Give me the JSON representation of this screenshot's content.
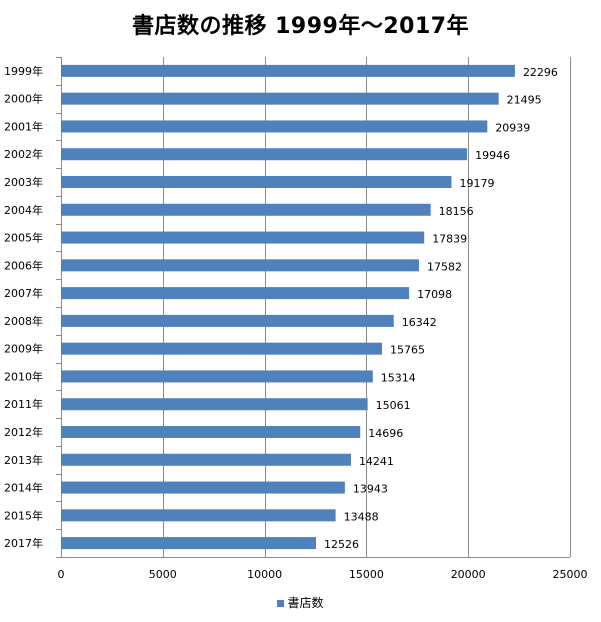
{
  "chart_data": {
    "type": "bar",
    "orientation": "horizontal",
    "title": "書店数の推移 1999年～2017年",
    "categories": [
      "1999年",
      "2000年",
      "2001年",
      "2002年",
      "2003年",
      "2004年",
      "2005年",
      "2006年",
      "2007年",
      "2008年",
      "2009年",
      "2010年",
      "2011年",
      "2012年",
      "2013年",
      "2014年",
      "2015年",
      "2017年"
    ],
    "series": [
      {
        "name": "書店数",
        "values": [
          22296,
          21495,
          20939,
          19946,
          19179,
          18156,
          17839,
          17582,
          17098,
          16342,
          15765,
          15314,
          15061,
          14696,
          14241,
          13943,
          13488,
          12526
        ]
      }
    ],
    "xlim": [
      0,
      25000
    ],
    "xticks": [
      0,
      5000,
      10000,
      15000,
      20000,
      25000
    ],
    "xlabel": "",
    "ylabel": "",
    "gridlines": "vertical",
    "legend_position": "bottom",
    "data_labels": true,
    "bar_color": "#4F81BD"
  }
}
